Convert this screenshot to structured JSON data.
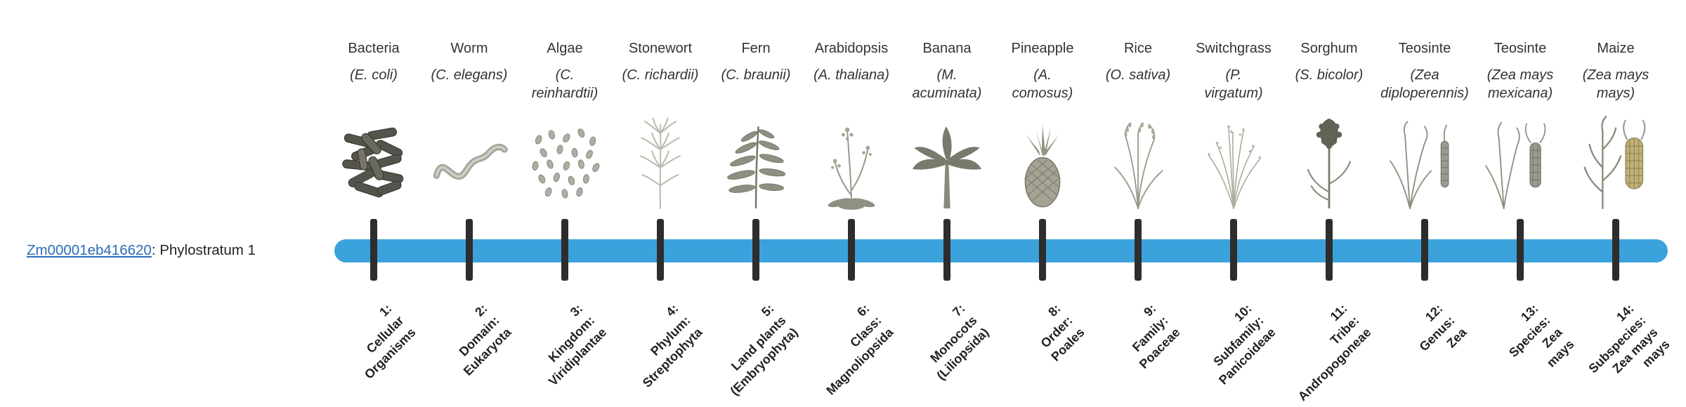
{
  "gene": {
    "id": "Zm00001eb416620",
    "suffix": ": Phylostratum 1"
  },
  "colors": {
    "bar": "#3ba2dc",
    "tick": "#2d2d2d",
    "link": "#2b6db6",
    "text": "#333333"
  },
  "organisms": [
    {
      "common_name": "Bacteria",
      "scientific_name": "(E. coli)",
      "icon": "bacteria-icon",
      "stratum_label": "1:\nCellular\nOrganisms"
    },
    {
      "common_name": "Worm",
      "scientific_name": "(C. elegans)",
      "icon": "worm-icon",
      "stratum_label": "2:\nDomain:\nEukaryota"
    },
    {
      "common_name": "Algae",
      "scientific_name": "(C.\nreinhardtii)",
      "icon": "algae-icon",
      "stratum_label": "3:\nKingdom:\nViridiplantae"
    },
    {
      "common_name": "Stonewort",
      "scientific_name": "(C. richardii)",
      "icon": "stonewort-icon",
      "stratum_label": "4:\nPhylum:\nStreptophyta"
    },
    {
      "common_name": "Fern",
      "scientific_name": "(C. braunii)",
      "icon": "fern-icon",
      "stratum_label": "5:\nLand plants\n(Embryophyta)"
    },
    {
      "common_name": "Arabidopsis",
      "scientific_name": "(A. thaliana)",
      "icon": "arabidopsis-icon",
      "stratum_label": "6:\nClass:\nMagnoliopsida"
    },
    {
      "common_name": "Banana",
      "scientific_name": "(M.\nacuminata)",
      "icon": "banana-icon",
      "stratum_label": "7:\nMonocots\n(Liliopsida)"
    },
    {
      "common_name": "Pineapple",
      "scientific_name": "(A.\ncomosus)",
      "icon": "pineapple-icon",
      "stratum_label": "8:\nOrder:\nPoales"
    },
    {
      "common_name": "Rice",
      "scientific_name": "(O. sativa)",
      "icon": "rice-icon",
      "stratum_label": "9:\nFamily:\nPoaceae"
    },
    {
      "common_name": "Switchgrass",
      "scientific_name": "(P.\nvirgatum)",
      "icon": "switchgrass-icon",
      "stratum_label": "10:\nSubfamily:\nPanicoideae"
    },
    {
      "common_name": "Sorghum",
      "scientific_name": "(S. bicolor)",
      "icon": "sorghum-icon",
      "stratum_label": "11:\nTribe:\nAndropogoneae"
    },
    {
      "common_name": "Teosinte",
      "scientific_name": "(Zea\ndiploperennis)",
      "icon": "teosinte-diploperennis-icon",
      "stratum_label": "12:\nGenus:\nZea"
    },
    {
      "common_name": "Teosinte",
      "scientific_name": "(Zea mays\nmexicana)",
      "icon": "teosinte-mexicana-icon",
      "stratum_label": "13:\nSpecies:\nZea\nmays"
    },
    {
      "common_name": "Maize",
      "scientific_name": "(Zea mays\nmays)",
      "icon": "maize-icon",
      "stratum_label": "14:\nSubspecies:\nZea mays\nmays"
    }
  ]
}
